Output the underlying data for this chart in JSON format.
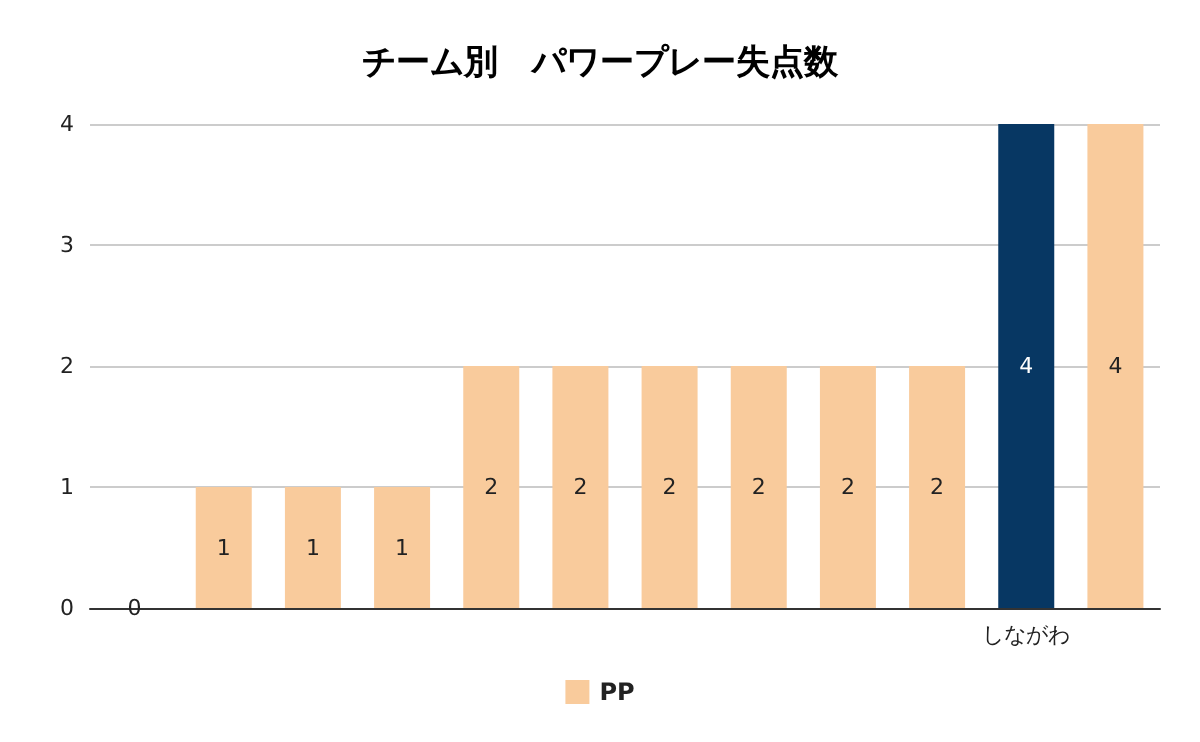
{
  "chart_data": {
    "type": "bar",
    "title": "チーム別　パワープレー失点数",
    "categories": [
      null,
      null,
      null,
      null,
      null,
      null,
      null,
      null,
      null,
      null,
      "しながわ",
      null
    ],
    "series": [
      {
        "name": "PP",
        "color": "#f9cb9c",
        "colors": [
          "#f9cb9c",
          "#f9cb9c",
          "#f9cb9c",
          "#f9cb9c",
          "#f9cb9c",
          "#f9cb9c",
          "#f9cb9c",
          "#f9cb9c",
          "#f9cb9c",
          "#f9cb9c",
          "#073763",
          "#f9cb9c"
        ],
        "values": [
          0,
          1,
          1,
          1,
          2,
          2,
          2,
          2,
          2,
          2,
          4,
          4
        ]
      }
    ],
    "ylim": [
      0,
      4
    ],
    "yticks": [
      0,
      1,
      2,
      3,
      4
    ],
    "grid": "y",
    "legend": "bottom",
    "data_labels": true
  }
}
